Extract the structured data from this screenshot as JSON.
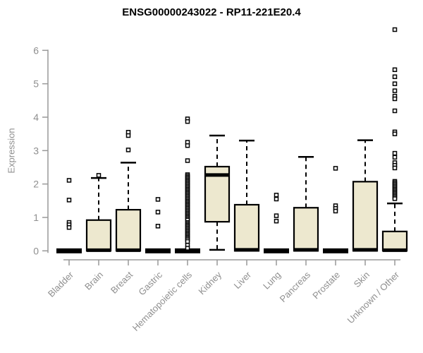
{
  "chart_data": {
    "type": "boxplot",
    "title": "ENSG00000243022 - RP11-221E20.4",
    "ylabel": "Expression",
    "xlabel": "",
    "ylim": [
      0,
      6.8
    ],
    "yticks": [
      0,
      1,
      2,
      3,
      4,
      5,
      6
    ],
    "grid": false,
    "legend": "none",
    "box_fill_color": "#ede8cf",
    "box_stroke_color": "#000000",
    "axis_color": "#999999",
    "tick_label_color": "#8f8f8f",
    "categories": [
      "Bladder",
      "Brain",
      "Breast",
      "Gastric",
      "Hematopoietic cells",
      "Kidney",
      "Liver",
      "Lung",
      "Pancreas",
      "Prostate",
      "Skin",
      "Unknown / Other"
    ],
    "series": [
      {
        "name": "Bladder",
        "q1": 0,
        "median": 0,
        "q3": 0.04,
        "whisker_low": 0,
        "whisker_high": 0.04,
        "flat": true,
        "outliers": [
          2.11,
          1.52,
          0.85,
          0.78,
          0.7
        ]
      },
      {
        "name": "Brain",
        "q1": 0,
        "median": 0.02,
        "q3": 0.92,
        "whisker_low": 0,
        "whisker_high": 2.18,
        "flat": false,
        "outliers": [
          2.26
        ]
      },
      {
        "name": "Breast",
        "q1": 0,
        "median": 0.02,
        "q3": 1.23,
        "whisker_low": 0,
        "whisker_high": 2.64,
        "flat": false,
        "outliers": [
          3.55,
          3.45,
          3.02
        ]
      },
      {
        "name": "Gastric",
        "q1": 0,
        "median": 0,
        "q3": 0.04,
        "whisker_low": 0,
        "whisker_high": 0.04,
        "flat": true,
        "outliers": [
          1.54,
          1.16,
          0.74
        ]
      },
      {
        "name": "Hematopoietic cells",
        "q1": 0,
        "median": 0,
        "q3": 0.04,
        "whisker_low": 0,
        "whisker_high": 0.04,
        "flat": true,
        "outliers": [
          3.95,
          3.87,
          3.25,
          3.15,
          2.7,
          2.28,
          2.24,
          2.2,
          2.16,
          2.12,
          2.08,
          2.04,
          2.0,
          1.96,
          1.92,
          1.88,
          1.84,
          1.8,
          1.76,
          1.72,
          1.68,
          1.64,
          1.6,
          1.56,
          1.52,
          1.48,
          1.44,
          1.4,
          1.36,
          1.32,
          1.28,
          1.24,
          1.2,
          1.16,
          1.12,
          1.08,
          1.04,
          1.0,
          0.96,
          0.92,
          0.85,
          0.81,
          0.77,
          0.73,
          0.69,
          0.65,
          0.61,
          0.57,
          0.53,
          0.49,
          0.45,
          0.41,
          0.37,
          0.33,
          0.28,
          0.17,
          0.08
        ]
      },
      {
        "name": "Kidney",
        "q1": 0.87,
        "median": 2.27,
        "q3": 2.52,
        "whisker_low": 0.03,
        "whisker_high": 3.45,
        "flat": false,
        "outliers": []
      },
      {
        "name": "Liver",
        "q1": 0,
        "median": 0.03,
        "q3": 1.38,
        "whisker_low": 0,
        "whisker_high": 3.3,
        "flat": false,
        "outliers": []
      },
      {
        "name": "Lung",
        "q1": 0,
        "median": 0,
        "q3": 0.04,
        "whisker_low": 0,
        "whisker_high": 0.04,
        "flat": true,
        "outliers": [
          1.67,
          1.55,
          1.05,
          0.89
        ]
      },
      {
        "name": "Pancreas",
        "q1": 0,
        "median": 0.03,
        "q3": 1.29,
        "whisker_low": 0,
        "whisker_high": 2.81,
        "flat": false,
        "outliers": []
      },
      {
        "name": "Prostate",
        "q1": 0,
        "median": 0,
        "q3": 0.04,
        "whisker_low": 0,
        "whisker_high": 0.04,
        "flat": true,
        "outliers": [
          2.47,
          1.35,
          1.27,
          1.19
        ]
      },
      {
        "name": "Skin",
        "q1": 0,
        "median": 0.03,
        "q3": 2.07,
        "whisker_low": 0,
        "whisker_high": 3.31,
        "flat": false,
        "outliers": []
      },
      {
        "name": "Unknown / Other",
        "q1": 0,
        "median": 0.02,
        "q3": 0.58,
        "whisker_low": 0,
        "whisker_high": 1.42,
        "flat": false,
        "outliers": [
          6.62,
          5.42,
          5.21,
          5.0,
          4.79,
          4.63,
          4.55,
          4.19,
          3.56,
          3.5,
          2.92,
          2.8,
          2.64,
          2.56,
          2.48,
          2.08,
          2.04,
          2.0,
          1.96,
          1.92,
          1.88,
          1.84,
          1.8,
          1.76,
          1.72,
          1.68,
          1.64,
          1.6,
          1.56
        ]
      }
    ]
  }
}
